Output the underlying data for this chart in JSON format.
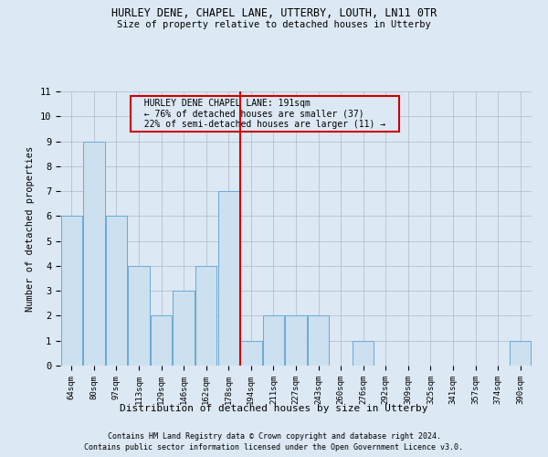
{
  "title": "HURLEY DENE, CHAPEL LANE, UTTERBY, LOUTH, LN11 0TR",
  "subtitle": "Size of property relative to detached houses in Utterby",
  "xlabel": "Distribution of detached houses by size in Utterby",
  "ylabel": "Number of detached properties",
  "categories": [
    "64sqm",
    "80sqm",
    "97sqm",
    "113sqm",
    "129sqm",
    "146sqm",
    "162sqm",
    "178sqm",
    "194sqm",
    "211sqm",
    "227sqm",
    "243sqm",
    "260sqm",
    "276sqm",
    "292sqm",
    "309sqm",
    "325sqm",
    "341sqm",
    "357sqm",
    "374sqm",
    "390sqm"
  ],
  "values": [
    6,
    9,
    6,
    4,
    2,
    3,
    4,
    7,
    1,
    2,
    2,
    2,
    0,
    1,
    0,
    0,
    0,
    0,
    0,
    0,
    1
  ],
  "bar_color": "#cce0f0",
  "bar_edge_color": "#6aaad4",
  "highlight_index": 8,
  "highlight_line_color": "#cc0000",
  "annotation_text": "  HURLEY DENE CHAPEL LANE: 191sqm  \n  ← 76% of detached houses are smaller (37)  \n  22% of semi-detached houses are larger (11) →  ",
  "annotation_box_color": "#cc0000",
  "ylim": [
    0,
    11
  ],
  "yticks": [
    0,
    1,
    2,
    3,
    4,
    5,
    6,
    7,
    8,
    9,
    10,
    11
  ],
  "grid_color": "#b0b8cc",
  "background_color": "#dce8f4",
  "footer_line1": "Contains HM Land Registry data © Crown copyright and database right 2024.",
  "footer_line2": "Contains public sector information licensed under the Open Government Licence v3.0."
}
